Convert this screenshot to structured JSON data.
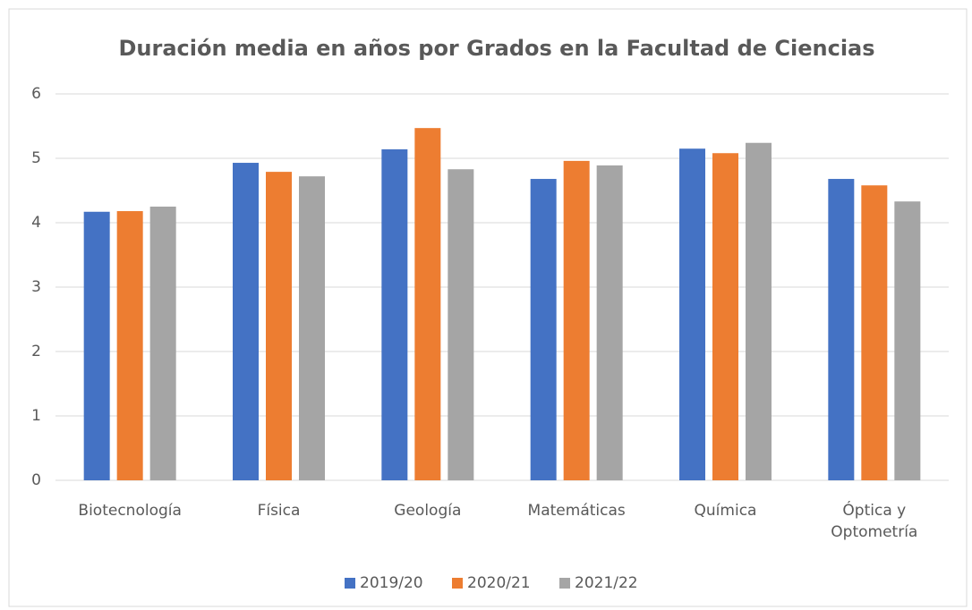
{
  "chart_data": {
    "type": "bar",
    "title": "Duración media en años por Grados en la Facultad de Ciencias",
    "categories": [
      "Biotecnología",
      "Física",
      "Geología",
      "Matemáticas",
      "Química",
      "Óptica y Optometría"
    ],
    "series": [
      {
        "name": "2019/20",
        "color": "#4472c4",
        "values": [
          4.17,
          4.93,
          5.14,
          4.68,
          5.15,
          4.68
        ]
      },
      {
        "name": "2020/21",
        "color": "#ed7d31",
        "values": [
          4.18,
          4.79,
          5.47,
          4.96,
          5.08,
          4.58
        ]
      },
      {
        "name": "2021/22",
        "color": "#a5a5a5",
        "values": [
          4.25,
          4.72,
          4.83,
          4.89,
          5.24,
          4.33
        ]
      }
    ],
    "ylim": [
      0,
      6
    ],
    "yticks": [
      0,
      1,
      2,
      3,
      4,
      5,
      6
    ],
    "grid": true,
    "legend": "bottom"
  }
}
